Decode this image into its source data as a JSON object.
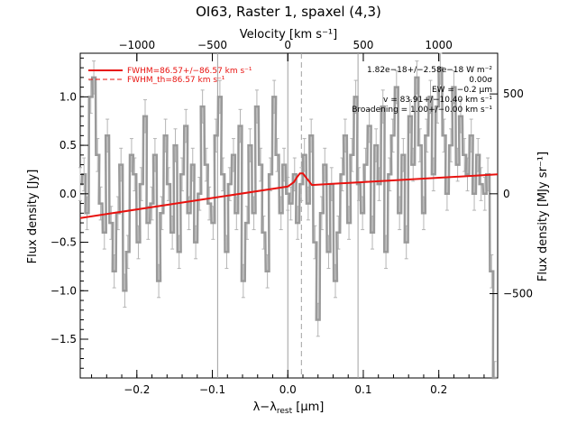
{
  "chart_data": {
    "type": "line",
    "title": "OI63, Raster 1, spaxel (4,3)",
    "xlabel": "λ−λrest [μm]",
    "xlabel_main": "λ−λ",
    "xlabel_sub": "rest",
    "xlabel_unit": " [μm]",
    "ylabel": "Flux density [Jy]",
    "top_axis_label": "Velocity [km s⁻¹]",
    "right_axis_label": "Flux density [MJy sr⁻¹]",
    "xlim": [
      -0.275,
      0.278
    ],
    "ylim": [
      -1.9,
      1.45
    ],
    "top_ticks": [
      "−1000",
      "−500",
      "0",
      "500",
      "1000"
    ],
    "top_tick_positions_um": [
      -0.2,
      -0.1,
      0.0,
      0.1,
      0.2
    ],
    "right_ticks": [
      "−500",
      "0",
      "500"
    ],
    "right_tick_values_jy": [
      -1.03,
      0.0,
      1.03
    ],
    "x_ticks": [
      "−0.2",
      "−0.1",
      "0.0",
      "0.1",
      "0.2"
    ],
    "x_tick_values": [
      -0.2,
      -0.1,
      0.0,
      0.1,
      0.2
    ],
    "y_ticks": [
      "−1.5",
      "−1.0",
      "−0.5",
      "0.0",
      "0.5",
      "1.0"
    ],
    "y_tick_values": [
      -1.5,
      -1.0,
      -0.5,
      0.0,
      0.5,
      1.0
    ],
    "vertical_lines": [
      -0.093,
      0.0,
      0.093
    ],
    "dashed_line": 0.018,
    "annotations": [
      "1.82e−18+/−2.58e−18 W m⁻²",
      "0.00σ",
      "EW = −0.2 μm",
      "v = 83.91+/−10.40 km s⁻¹",
      "Broadening = 1.00+/−0.00 km s⁻¹"
    ],
    "legend": [
      {
        "label": "FWHM=86.57+/−86.57 km s⁻¹",
        "style": "solid",
        "color": "#e8120f"
      },
      {
        "label": "FWHM_th=86.57 km s⁻¹",
        "style": "dashed",
        "color": "#e8120f"
      }
    ],
    "colors": {
      "spectrum": "#9a9a9a",
      "fit": "#e8120f",
      "axes": "#000000",
      "vlines": "#a0a0a0"
    },
    "series": [
      {
        "name": "Spectrum",
        "x": [
          -0.275,
          -0.27,
          -0.266,
          -0.261,
          -0.257,
          -0.252,
          -0.248,
          -0.243,
          -0.239,
          -0.234,
          -0.23,
          -0.225,
          -0.221,
          -0.216,
          -0.212,
          -0.207,
          -0.203,
          -0.198,
          -0.194,
          -0.189,
          -0.185,
          -0.18,
          -0.176,
          -0.171,
          -0.167,
          -0.162,
          -0.158,
          -0.153,
          -0.149,
          -0.144,
          -0.14,
          -0.135,
          -0.131,
          -0.126,
          -0.122,
          -0.117,
          -0.113,
          -0.108,
          -0.104,
          -0.099,
          -0.095,
          -0.09,
          -0.086,
          -0.081,
          -0.077,
          -0.072,
          -0.068,
          -0.063,
          -0.059,
          -0.054,
          -0.05,
          -0.045,
          -0.041,
          -0.036,
          -0.032,
          -0.027,
          -0.023,
          -0.018,
          -0.014,
          -0.009,
          -0.005,
          0.0,
          0.004,
          0.009,
          0.013,
          0.018,
          0.022,
          0.027,
          0.031,
          0.036,
          0.04,
          0.045,
          0.049,
          0.054,
          0.058,
          0.063,
          0.067,
          0.072,
          0.076,
          0.081,
          0.085,
          0.09,
          0.094,
          0.099,
          0.103,
          0.108,
          0.112,
          0.117,
          0.121,
          0.126,
          0.13,
          0.135,
          0.139,
          0.144,
          0.148,
          0.153,
          0.157,
          0.162,
          0.166,
          0.171,
          0.175,
          0.18,
          0.184,
          0.189,
          0.193,
          0.198,
          0.202,
          0.207,
          0.211,
          0.216,
          0.22,
          0.225,
          0.229,
          0.234,
          0.238,
          0.243,
          0.247,
          0.252,
          0.256,
          0.261,
          0.265,
          0.27,
          0.274
        ],
        "y": [
          0.1,
          0.2,
          -0.2,
          1.0,
          1.2,
          0.4,
          -0.1,
          -0.4,
          0.6,
          -0.3,
          -0.8,
          -0.2,
          0.3,
          -1.0,
          -0.6,
          0.4,
          0.2,
          -0.5,
          0.1,
          0.8,
          -0.3,
          -0.1,
          0.4,
          -0.9,
          -0.2,
          0.6,
          0.1,
          -0.4,
          0.5,
          -0.6,
          0.2,
          0.7,
          -0.2,
          0.3,
          -0.5,
          0.0,
          0.9,
          0.3,
          -0.1,
          -0.3,
          0.6,
          1.0,
          0.2,
          -0.6,
          0.1,
          0.4,
          -0.2,
          0.7,
          -0.9,
          -0.3,
          0.5,
          -0.2,
          0.9,
          0.3,
          -0.4,
          -0.8,
          0.2,
          1.0,
          0.4,
          -0.2,
          0.3,
          0.0,
          -0.1,
          0.2,
          -0.3,
          0.1,
          0.4,
          -0.1,
          0.6,
          -0.5,
          -1.3,
          -0.2,
          0.3,
          -0.6,
          0.1,
          -0.9,
          -0.4,
          0.2,
          0.6,
          -0.3,
          0.4,
          1.0,
          0.1,
          -0.2,
          0.3,
          0.7,
          -0.4,
          0.5,
          0.1,
          0.9,
          -0.6,
          0.2,
          0.6,
          1.1,
          -0.2,
          0.4,
          -0.5,
          0.8,
          0.3,
          1.2,
          0.5,
          -0.2,
          0.6,
          1.0,
          0.2,
          0.9,
          1.3,
          0.6,
          0.0,
          0.5,
          1.1,
          0.3,
          0.8,
          0.4,
          0.2,
          0.6,
          0.0,
          0.4,
          0.1,
          0.0,
          0.2,
          -0.8,
          -1.9
        ]
      },
      {
        "name": "Fit",
        "x": [
          -0.275,
          0.0,
          0.008,
          0.012,
          0.016,
          0.02,
          0.024,
          0.028,
          0.032,
          0.278
        ],
        "y": [
          -0.25,
          0.075,
          0.12,
          0.17,
          0.21,
          0.21,
          0.17,
          0.13,
          0.09,
          0.2
        ]
      }
    ]
  }
}
